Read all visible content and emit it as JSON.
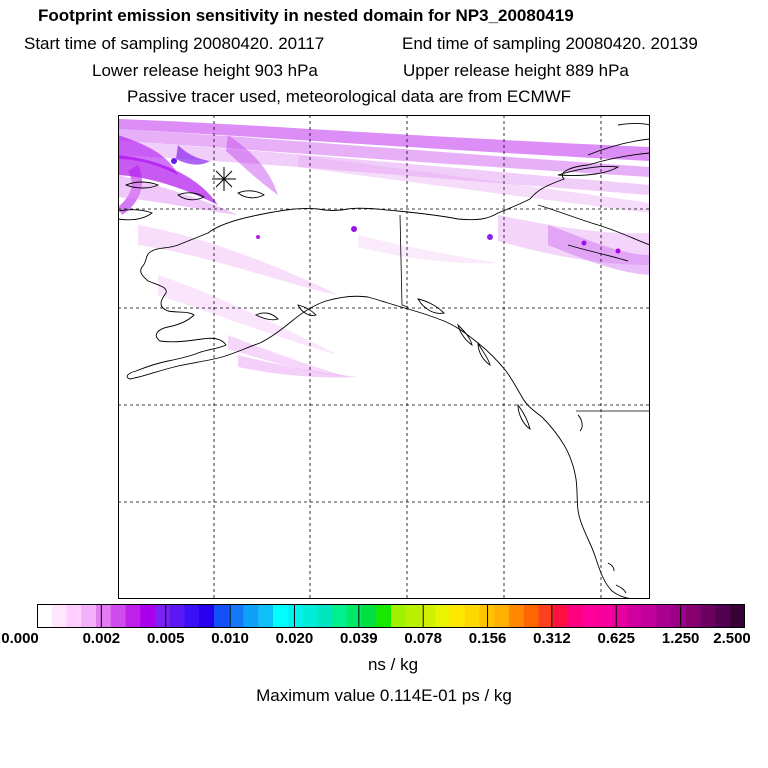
{
  "header": {
    "title": "Footprint emission sensitivity in nested domain for NP3_20080419",
    "start_time": "Start time of sampling 20080420. 20117",
    "end_time": "End time of sampling 20080420. 20139",
    "lower_release": "Lower release height  903 hPa",
    "upper_release": "Upper release height  889 hPa",
    "tracer_info": "Passive tracer used, meteorological data are from ECMWF"
  },
  "colorbar": {
    "ticks": [
      "0.000",
      "0.002",
      "0.005",
      "0.010",
      "0.020",
      "0.039",
      "0.078",
      "0.156",
      "0.312",
      "0.625",
      "1.250",
      "2.500"
    ],
    "colors": [
      "#ffffff",
      "#ffe8ff",
      "#ffd0ff",
      "#f4b0f8",
      "#e27cf0",
      "#d04cec",
      "#be22ea",
      "#aa00ee",
      "#7a22f2",
      "#5a18f4",
      "#3a10f4",
      "#2800f0",
      "#1450f8",
      "#1478f8",
      "#10a0fa",
      "#10c0f8",
      "#00ffff",
      "#00f4ee",
      "#00ecd8",
      "#00e4c0",
      "#00f090",
      "#00e868",
      "#00e040",
      "#18e800",
      "#a0f000",
      "#b8f000",
      "#d0f000",
      "#e8f400",
      "#ffe800",
      "#ffd800",
      "#ffc400",
      "#ffb000",
      "#ff8800",
      "#ff6600",
      "#ff4020",
      "#ff1040",
      "#ff0080",
      "#ff0098",
      "#f8009c",
      "#e800a0",
      "#d000a0",
      "#c00098",
      "#a80090",
      "#9a0088",
      "#880070",
      "#6a0060",
      "#520050",
      "#3a0038"
    ],
    "unit": "ns / kg"
  },
  "max_value": "Maximum value  0.114E-01 ps / kg"
}
